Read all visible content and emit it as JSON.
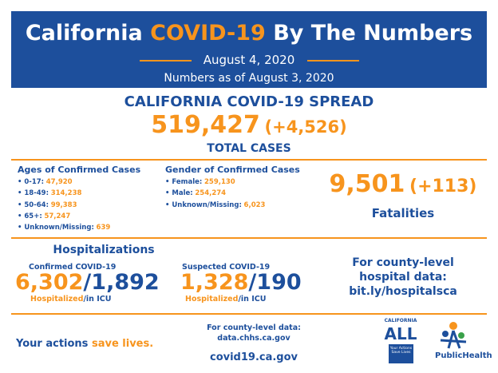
{
  "header": {
    "title_parts": [
      "California ",
      "COVID-19",
      " By The Numbers"
    ],
    "date": "August 4, 2020",
    "as_of": "Numbers as of August 3, 2020"
  },
  "spread": {
    "heading": "CALIFORNIA COVID-19 SPREAD",
    "total": "519,427",
    "change": "(+4,526)",
    "label": "TOTAL CASES"
  },
  "ages": {
    "heading": "Ages of Confirmed Cases",
    "rows": [
      {
        "label": "• 0-17:",
        "value": "47,920"
      },
      {
        "label": "• 18-49:",
        "value": "314,238"
      },
      {
        "label": "• 50-64:",
        "value": "99,383"
      },
      {
        "label": "• 65+:",
        "value": "57,247"
      },
      {
        "label": "• Unknown/Missing:",
        "value": "639"
      }
    ]
  },
  "gender": {
    "heading": "Gender of Confirmed Cases",
    "rows": [
      {
        "label": "• Female:",
        "value": "259,130"
      },
      {
        "label": "• Male:",
        "value": "254,274"
      },
      {
        "label": "• Unknown/Missing:",
        "value": "6,023"
      }
    ]
  },
  "fatalities": {
    "total": "9,501",
    "change": "(+113)",
    "label": "Fatalities"
  },
  "hospitalizations": {
    "heading": "Hospitalizations",
    "separator": "/",
    "confirmed": {
      "label": "Confirmed COVID-19",
      "hospitalized": "6,302",
      "icu": "1,892",
      "note_hosp": "Hospitalized",
      "note_icu": "/in ICU"
    },
    "suspected": {
      "label": "Suspected COVID-19",
      "hospitalized": "1,328",
      "icu": "190",
      "note_hosp": "Hospitalized",
      "note_icu": "/in ICU"
    }
  },
  "county_hospital": {
    "lines": [
      "For county-level",
      "hospital data:",
      "bit.ly/hospitalsca"
    ]
  },
  "footer": {
    "slogan_parts": [
      "Your actions ",
      "save lives."
    ],
    "county_data": [
      "For county-level data:",
      "data.chhs.ca.gov"
    ],
    "site": "covid19.ca.gov"
  },
  "logos": {
    "ca_top": "CALIFORNIA",
    "ca_all": "ALL",
    "ca_tag": "Your Actions Save Lives",
    "ph": "PublicHealth"
  }
}
